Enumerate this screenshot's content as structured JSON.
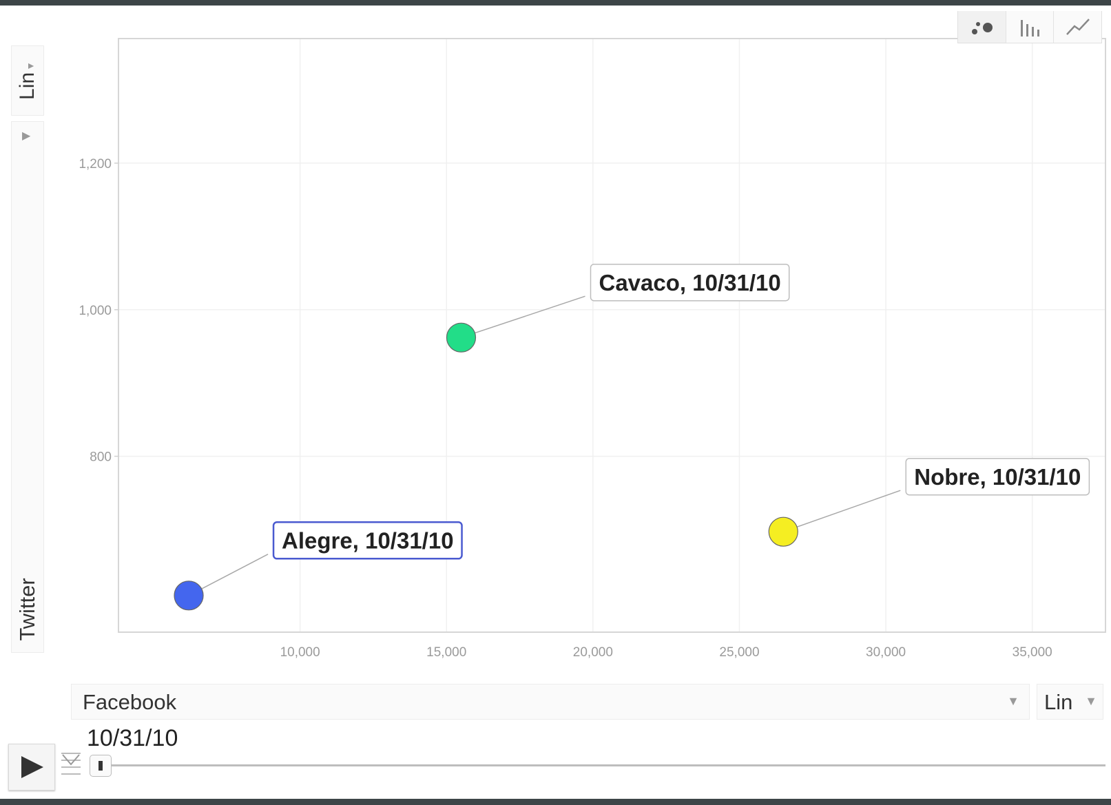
{
  "toolbar": {
    "chart_types": [
      {
        "name": "bubbles",
        "icon": "bubble-chart-icon"
      },
      {
        "name": "bars",
        "icon": "bar-chart-icon"
      },
      {
        "name": "lines",
        "icon": "line-chart-icon"
      }
    ]
  },
  "y_axis_controls": {
    "scale_label": "Lin",
    "metric_label": "Twitter"
  },
  "x_axis_controls": {
    "metric_label": "Facebook",
    "scale_label": "Lin"
  },
  "playback": {
    "date_label": "10/31/10"
  },
  "chart_data": {
    "type": "scatter",
    "xlabel": "Facebook",
    "ylabel": "Twitter",
    "xlim": [
      3800,
      37500
    ],
    "ylim": [
      560,
      1370
    ],
    "x_ticks": [
      10000,
      15000,
      20000,
      25000,
      30000,
      35000
    ],
    "x_tick_labels": [
      "10,000",
      "15,000",
      "20,000",
      "25,000",
      "30,000",
      "35,000"
    ],
    "y_ticks": [
      800,
      1000,
      1200
    ],
    "y_tick_labels": [
      "800",
      "1,000",
      "1,200"
    ],
    "grid": true,
    "series": [
      {
        "name": "Alegre",
        "label": "Alegre, 10/31/10",
        "x": 6200,
        "y": 610,
        "color": "#4466ee",
        "highlighted": true
      },
      {
        "name": "Cavaco",
        "label": "Cavaco, 10/31/10",
        "x": 15500,
        "y": 962,
        "color": "#22dd88",
        "highlighted": false
      },
      {
        "name": "Nobre",
        "label": "Nobre, 10/31/10",
        "x": 26500,
        "y": 697,
        "color": "#f5ee22",
        "highlighted": false
      }
    ]
  }
}
